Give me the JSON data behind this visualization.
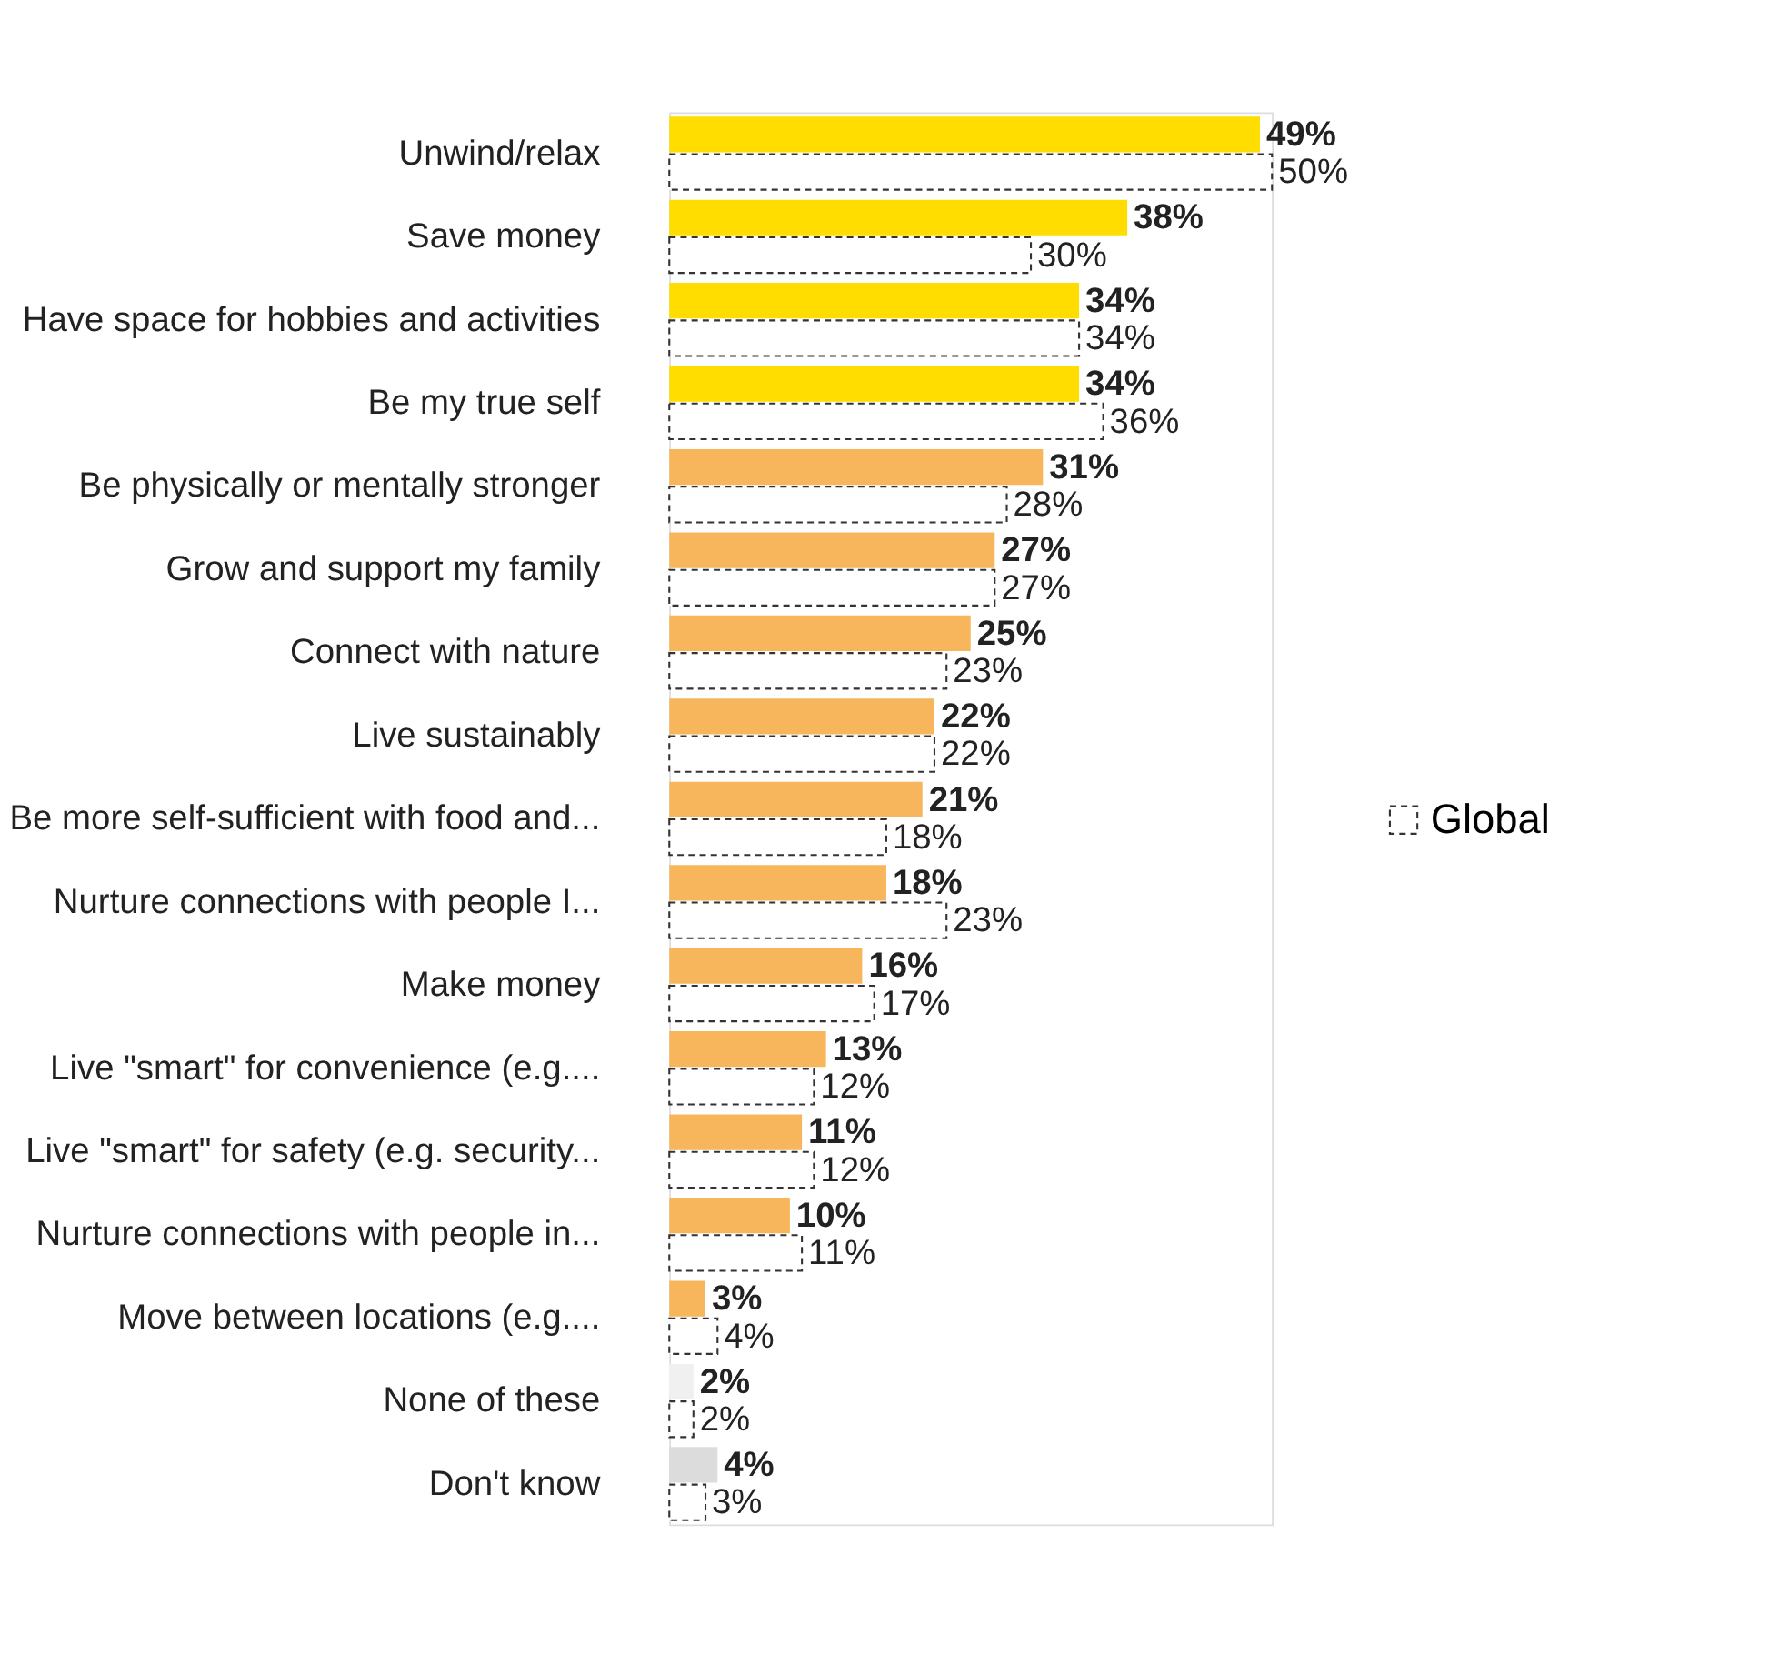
{
  "chart_data": {
    "type": "bar",
    "orientation": "horizontal",
    "data_labels": true,
    "legend": "right",
    "categories": [
      "Unwind/relax",
      "Save money",
      "Have space for hobbies and activities",
      "Be my true self",
      "Be physically or mentally stronger",
      "Grow and support my family",
      "Connect with nature",
      "Live sustainably",
      "Be more self-sufficient with food and...",
      "Nurture connections with people I...",
      "Make money",
      "Live \"smart\" for convenience (e.g....",
      "Live \"smart\" for safety (e.g. security...",
      "Nurture connections with people in...",
      "Move between locations (e.g....",
      "None of these",
      "Don't know"
    ],
    "series": [
      {
        "values": [
          49,
          38,
          34,
          34,
          31,
          27,
          25,
          22,
          21,
          18,
          16,
          13,
          11,
          10,
          3,
          2,
          4
        ],
        "value_labels": [
          "49%",
          "38%",
          "34%",
          "34%",
          "31%",
          "27%",
          "25%",
          "22%",
          "21%",
          "18%",
          "16%",
          "13%",
          "11%",
          "10%",
          "3%",
          "2%",
          "4%"
        ],
        "colors": [
          "#ffdd00",
          "#ffdd00",
          "#ffdd00",
          "#ffdd00",
          "#f7b55c",
          "#f7b55c",
          "#f7b55c",
          "#f7b55c",
          "#f7b55c",
          "#f7b55c",
          "#f7b55c",
          "#f7b55c",
          "#f7b55c",
          "#f7b55c",
          "#f7b55c",
          "#f0f0f0",
          "#dcdcdc"
        ]
      },
      {
        "name": "Global",
        "color": "#333333",
        "line_style": "dashed",
        "values": [
          50,
          30,
          34,
          36,
          28,
          27,
          23,
          22,
          18,
          23,
          17,
          12,
          12,
          11,
          4,
          2,
          3
        ],
        "value_labels": [
          "50%",
          "30%",
          "34%",
          "36%",
          "28%",
          "27%",
          "23%",
          "22%",
          "18%",
          "23%",
          "17%",
          "12%",
          "12%",
          "11%",
          "4%",
          "2%",
          "3%"
        ]
      }
    ]
  }
}
